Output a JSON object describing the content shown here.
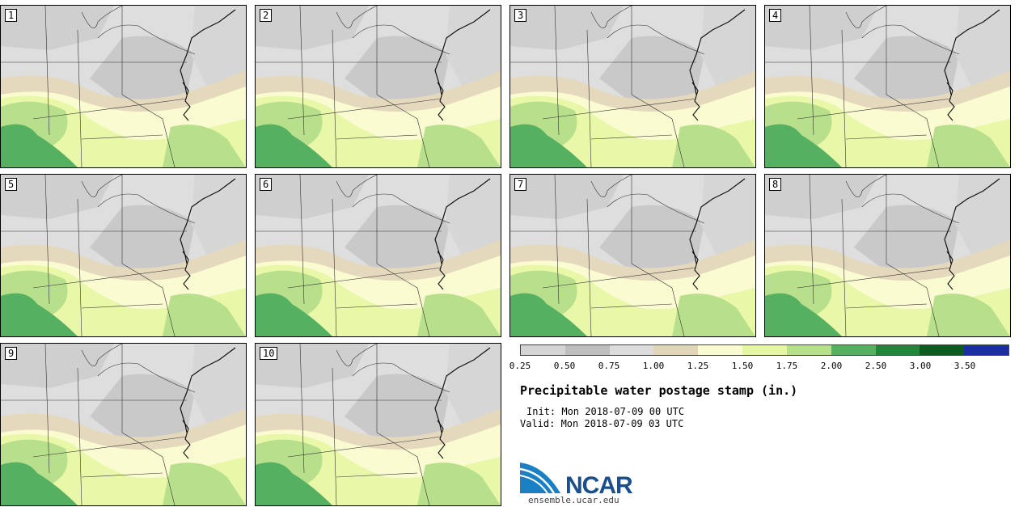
{
  "panels": [
    {
      "label": "1"
    },
    {
      "label": "2"
    },
    {
      "label": "3"
    },
    {
      "label": "4"
    },
    {
      "label": "5"
    },
    {
      "label": "6"
    },
    {
      "label": "7"
    },
    {
      "label": "8"
    },
    {
      "label": "9"
    },
    {
      "label": "10"
    }
  ],
  "colorbar": {
    "colors": [
      "#d4d4d4",
      "#bebebe",
      "#dcdcdc",
      "#e2d6b8",
      "#fbfbd0",
      "#e6f7a4",
      "#b6e08a",
      "#55b060",
      "#1e8838",
      "#0c5c1f",
      "#1c2ea6"
    ],
    "tick_labels": [
      "0.25",
      "0.50",
      "0.75",
      "1.00",
      "1.25",
      "1.50",
      "1.75",
      "2.00",
      "2.50",
      "3.00",
      "3.50"
    ]
  },
  "title": "Precipitable water postage stamp (in.)",
  "init": "Init: Mon 2018-07-09 00 UTC",
  "valid": "Valid: Mon 2018-07-09 03 UTC",
  "logo": {
    "text": "NCAR",
    "site": "ensemble.ucar.edu"
  }
}
